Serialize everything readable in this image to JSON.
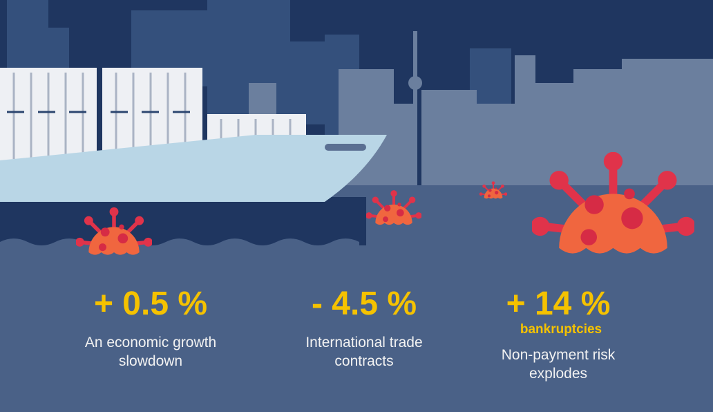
{
  "stats": [
    {
      "value": "+ 0.5 %",
      "label": "An economic growth slowdown"
    },
    {
      "value": "- 4.5 %",
      "label": "International trade contracts"
    },
    {
      "value": "+ 14 %",
      "sublabel": "bankruptcies",
      "label": "Non-payment risk explodes"
    }
  ]
}
